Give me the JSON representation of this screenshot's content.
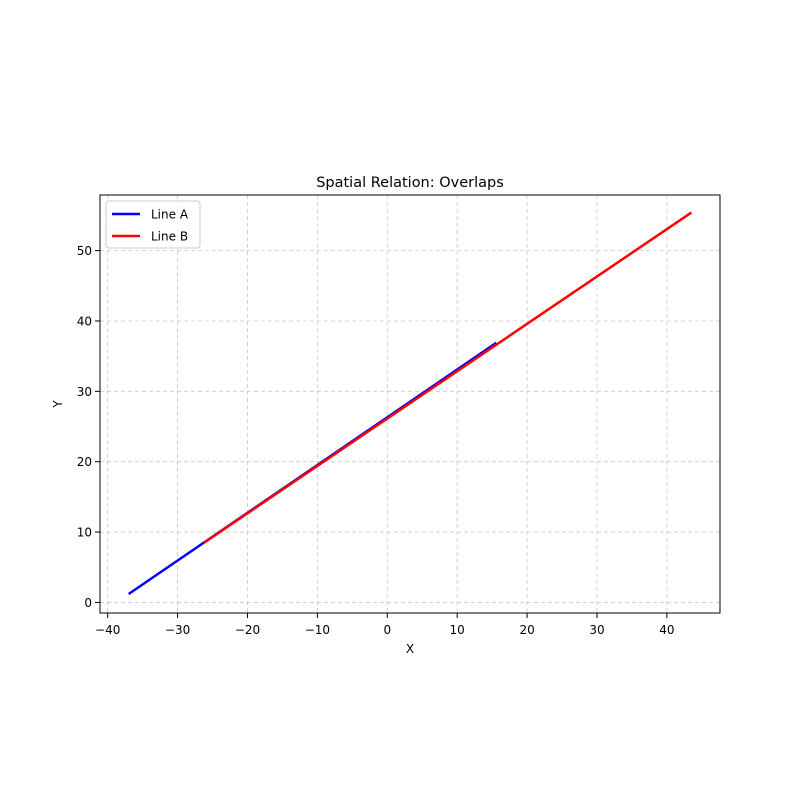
{
  "chart_data": {
    "type": "line",
    "title": "Spatial Relation: Overlaps",
    "xlabel": "X",
    "ylabel": "Y",
    "xlim": [
      -41.1,
      47.6
    ],
    "ylim": [
      -1.5,
      57.9
    ],
    "xticks": [
      -40,
      -30,
      -20,
      -10,
      0,
      10,
      20,
      30,
      40
    ],
    "yticks": [
      0,
      10,
      20,
      30,
      40,
      50
    ],
    "xtick_labels": [
      "−40",
      "−30",
      "−20",
      "−10",
      "0",
      "10",
      "20",
      "30",
      "40"
    ],
    "ytick_labels": [
      "0",
      "10",
      "20",
      "30",
      "40",
      "50"
    ],
    "grid": true,
    "legend_position": "top-left",
    "series": [
      {
        "name": "Line A",
        "color": "#0000ff",
        "x": [
          -37.0,
          15.6
        ],
        "y": [
          1.2,
          36.9
        ]
      },
      {
        "name": "Line B",
        "color": "#ff0000",
        "x": [
          -26.2,
          43.5
        ],
        "y": [
          8.5,
          55.4
        ]
      }
    ]
  }
}
